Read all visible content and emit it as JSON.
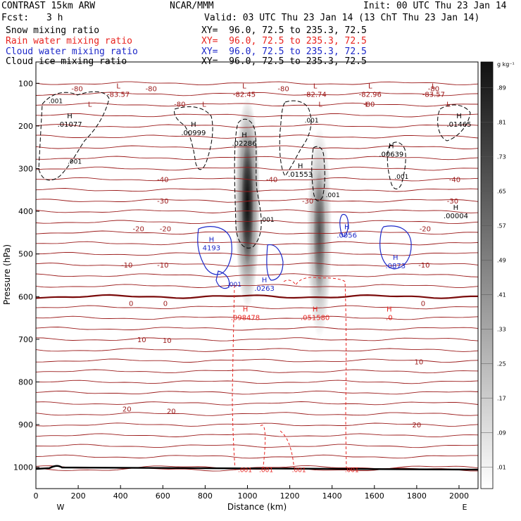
{
  "header": {
    "model": "CONTRAST 15km ARW",
    "org": "NCAR/MMM",
    "init": "Init: 00 UTC Thu 23 Jan 14",
    "fcst_label": "Fcst:",
    "fcst_value": "3 h",
    "valid": "Valid: 03 UTC Thu 23 Jan 14 (13 ChT Thu 23 Jan 14)",
    "fields": [
      {
        "name": "Snow mixing ratio",
        "xy": "XY=  96.0, 72.5 to 235.3, 72.5",
        "color": "#000000"
      },
      {
        "name": "Rain water mixing ratio",
        "xy": "XY=  96.0, 72.5 to 235.3, 72.5",
        "color": "#e8231f"
      },
      {
        "name": "Cloud water mixing ratio",
        "xy": "XY=  96.0, 72.5 to 235.3, 72.5",
        "color": "#1d28c8"
      },
      {
        "name": "Cloud ice mixing ratio",
        "xy": "XY=  96.0, 72.5 to 235.3, 72.5",
        "color": "#000000"
      }
    ]
  },
  "colorbar": {
    "unit": "g kg⁻¹",
    "levels": [
      ".01",
      ".09",
      ".17",
      ".25",
      ".33",
      ".41",
      ".49",
      ".57",
      ".65",
      ".73",
      ".81",
      ".89"
    ]
  },
  "chart_data": {
    "type": "contour cross-section",
    "xlabel": "Distance (km)",
    "ylabel": "Pressure (hPa)",
    "xlim": [
      0,
      2090
    ],
    "ylim": [
      1050,
      50
    ],
    "x_ticks": [
      0,
      200,
      400,
      600,
      800,
      1000,
      1200,
      1400,
      1600,
      1800,
      2000
    ],
    "y_ticks": [
      100,
      200,
      300,
      400,
      500,
      600,
      700,
      800,
      900,
      1000
    ],
    "x_end_labels": {
      "left": "W",
      "right": "E"
    },
    "temperature_contour_labels": [
      {
        "x": 195,
        "p": 112,
        "text": "-80"
      },
      {
        "x": 545,
        "p": 112,
        "text": "-80"
      },
      {
        "x": 1170,
        "p": 112,
        "text": "-80"
      },
      {
        "x": 1880,
        "p": 112,
        "text": "-80"
      },
      {
        "x": 680,
        "p": 148,
        "text": "-80"
      },
      {
        "x": 1575,
        "p": 148,
        "text": "-80"
      },
      {
        "x": 795,
        "p": 148,
        "text": "L"
      },
      {
        "x": 255,
        "p": 148,
        "text": "L"
      },
      {
        "x": 1345,
        "p": 148,
        "text": "L"
      },
      {
        "x": 1565,
        "p": 148,
        "text": "L"
      },
      {
        "x": 1950,
        "p": 148,
        "text": "L"
      },
      {
        "x": 600,
        "p": 325,
        "text": "-40"
      },
      {
        "x": 1115,
        "p": 325,
        "text": "-40"
      },
      {
        "x": 1980,
        "p": 325,
        "text": "-40"
      },
      {
        "x": 600,
        "p": 375,
        "text": "-30"
      },
      {
        "x": 1285,
        "p": 375,
        "text": "-30"
      },
      {
        "x": 1970,
        "p": 375,
        "text": "-30"
      },
      {
        "x": 485,
        "p": 440,
        "text": "-20"
      },
      {
        "x": 612,
        "p": 440,
        "text": "-20"
      },
      {
        "x": 1840,
        "p": 440,
        "text": "-20"
      },
      {
        "x": 430,
        "p": 525,
        "text": "-10"
      },
      {
        "x": 600,
        "p": 525,
        "text": "-10"
      },
      {
        "x": 1835,
        "p": 525,
        "text": "-10"
      },
      {
        "x": 450,
        "p": 615,
        "text": "0"
      },
      {
        "x": 612,
        "p": 615,
        "text": "0"
      },
      {
        "x": 1830,
        "p": 615,
        "text": "0"
      },
      {
        "x": 500,
        "p": 700,
        "text": "10"
      },
      {
        "x": 620,
        "p": 702,
        "text": "10"
      },
      {
        "x": 1810,
        "p": 752,
        "text": "10"
      },
      {
        "x": 430,
        "p": 863,
        "text": "20"
      },
      {
        "x": 640,
        "p": 868,
        "text": "20"
      },
      {
        "x": 1800,
        "p": 900,
        "text": "20"
      }
    ],
    "extrema": [
      {
        "kind": "L",
        "x": 390,
        "p": 125,
        "value": "-83.57",
        "color": "#9b0f0f"
      },
      {
        "kind": "L",
        "x": 985,
        "p": 125,
        "value": "-82.45",
        "color": "#9b0f0f"
      },
      {
        "kind": "L",
        "x": 1320,
        "p": 125,
        "value": "-82.74",
        "color": "#9b0f0f"
      },
      {
        "kind": "L",
        "x": 1580,
        "p": 125,
        "value": "-82.96",
        "color": "#9b0f0f"
      },
      {
        "kind": "L",
        "x": 1880,
        "p": 125,
        "value": "-83.57",
        "color": "#9b0f0f"
      },
      {
        "kind": "H",
        "x": 160,
        "p": 195,
        "value": ".01077",
        "color": "#000000"
      },
      {
        "kind": "H",
        "x": 745,
        "p": 215,
        "value": ".00999",
        "color": "#000000"
      },
      {
        "kind": "H",
        "x": 985,
        "p": 240,
        "value": ".02286",
        "color": "#000000"
      },
      {
        "kind": "H",
        "x": 1250,
        "p": 312,
        "value": ".01553",
        "color": "#000000"
      },
      {
        "kind": "H",
        "x": 1680,
        "p": 265,
        "value": ".00639",
        "color": "#000000"
      },
      {
        "kind": "H",
        "x": 2000,
        "p": 195,
        "value": ".01465",
        "color": "#000000"
      },
      {
        "kind": "H",
        "x": 1985,
        "p": 410,
        "value": ".00004",
        "color": "#000000"
      },
      {
        "kind": "H",
        "x": 830,
        "p": 485,
        "value": "4193",
        "color": "#1d28c8"
      },
      {
        "kind": "H",
        "x": 1470,
        "p": 455,
        "value": ".0056",
        "color": "#1d28c8"
      },
      {
        "kind": "H",
        "x": 1700,
        "p": 527,
        "value": ".0873",
        "color": "#1d28c8"
      },
      {
        "kind": "H",
        "x": 1080,
        "p": 580,
        "value": ".0263",
        "color": "#1d28c8"
      },
      {
        "kind": "H",
        "x": 990,
        "p": 648,
        "value": ".098478",
        "color": "#e8231f"
      },
      {
        "kind": "H",
        "x": 1320,
        "p": 648,
        "value": ".051580",
        "color": "#e8231f"
      },
      {
        "kind": "H",
        "x": 1670,
        "p": 648,
        "value": ".0",
        "color": "#e8231f"
      }
    ],
    "contour_value_labels": [
      {
        "x": 60,
        "p": 140,
        "text": ".001",
        "color": "#000000"
      },
      {
        "x": 150,
        "p": 282,
        "text": ".001",
        "color": "#000000"
      },
      {
        "x": 1270,
        "p": 185,
        "text": ".001",
        "color": "#000000"
      },
      {
        "x": 1695,
        "p": 317,
        "text": ".001",
        "color": "#000000"
      },
      {
        "x": 1370,
        "p": 360,
        "text": ".001",
        "color": "#000000"
      },
      {
        "x": 1060,
        "p": 418,
        "text": ".001",
        "color": "#000000"
      },
      {
        "x": 905,
        "p": 570,
        "text": ".001",
        "color": "#1d28c8"
      },
      {
        "x": 955,
        "p": 1005,
        "text": ".001",
        "color": "#e8231f"
      },
      {
        "x": 1055,
        "p": 1005,
        "text": ".001",
        "color": "#e8231f"
      },
      {
        "x": 1210,
        "p": 1005,
        "text": ".001",
        "color": "#e8231f"
      },
      {
        "x": 1460,
        "p": 1005,
        "text": ".001",
        "color": "#e8231f"
      }
    ],
    "snow_maxima": [
      {
        "x": 1000,
        "p": 380,
        "peak": 0.95
      },
      {
        "x": 1340,
        "p": 450,
        "peak": 0.55
      }
    ]
  }
}
